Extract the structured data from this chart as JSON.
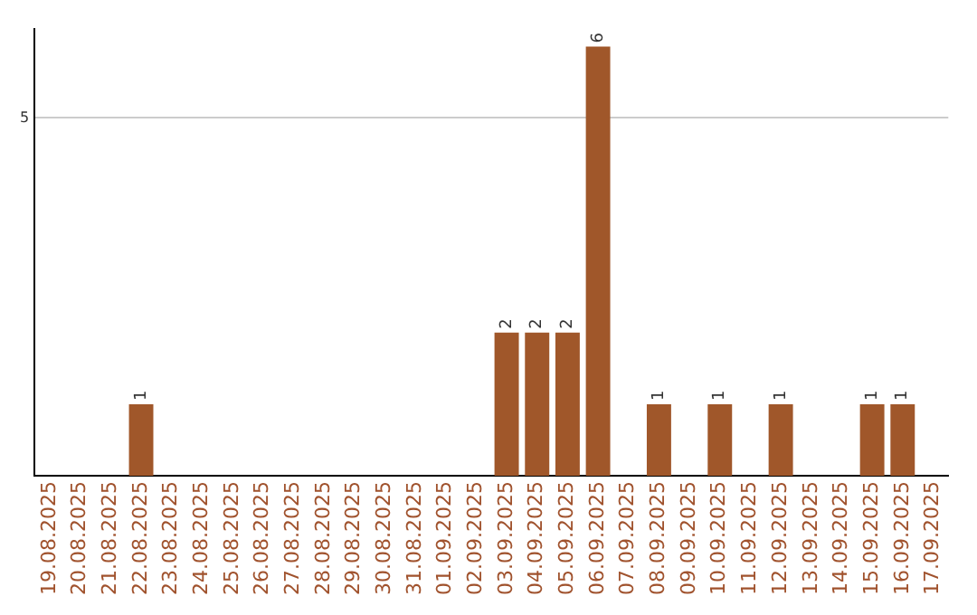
{
  "chart_data": {
    "type": "bar",
    "categories": [
      "19.08.2025",
      "20.08.2025",
      "21.08.2025",
      "22.08.2025",
      "23.08.2025",
      "24.08.2025",
      "25.08.2025",
      "26.08.2025",
      "27.08.2025",
      "28.08.2025",
      "29.08.2025",
      "30.08.2025",
      "31.08.2025",
      "01.09.2025",
      "02.09.2025",
      "03.09.2025",
      "04.09.2025",
      "05.09.2025",
      "06.09.2025",
      "07.09.2025",
      "08.09.2025",
      "09.09.2025",
      "10.09.2025",
      "11.09.2025",
      "12.09.2025",
      "13.09.2025",
      "14.09.2025",
      "15.09.2025",
      "16.09.2025",
      "17.09.2025"
    ],
    "values": [
      0,
      0,
      0,
      1,
      0,
      0,
      0,
      0,
      0,
      0,
      0,
      0,
      0,
      0,
      0,
      2,
      2,
      2,
      6,
      0,
      1,
      0,
      1,
      0,
      1,
      0,
      0,
      1,
      1,
      0
    ],
    "value_labels": [
      null,
      null,
      null,
      "1",
      null,
      null,
      null,
      null,
      null,
      null,
      null,
      null,
      null,
      null,
      null,
      "2",
      "2",
      "2",
      "6",
      null,
      "1",
      null,
      "1",
      null,
      "1",
      null,
      null,
      "1",
      "1",
      null
    ],
    "color": "#a0572a",
    "ylim": [
      0,
      6.25
    ],
    "yticks": [
      5
    ],
    "grid": "y",
    "legend": false
  }
}
